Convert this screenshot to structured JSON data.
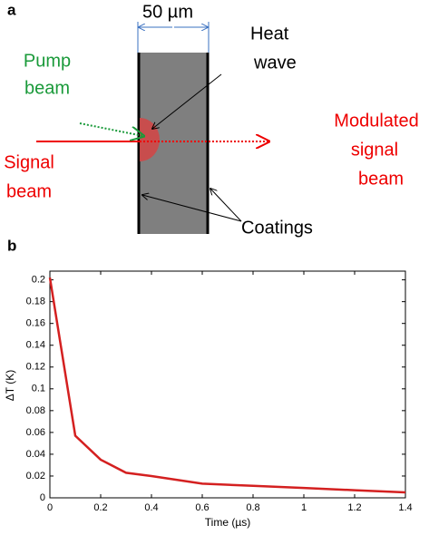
{
  "panel_a": {
    "label": "a",
    "width_label": "50 µm",
    "heat_wave": [
      "Heat",
      "wave"
    ],
    "pump_beam": [
      "Pump",
      "beam"
    ],
    "signal_beam": [
      "Signal",
      "beam"
    ],
    "modulated_beam": [
      "Modulated",
      "signal",
      "beam"
    ],
    "coatings": "Coatings"
  },
  "panel_b": {
    "label": "b"
  },
  "chart_data": {
    "type": "line",
    "x_label": "Time (µs)",
    "y_label": "ΔT (K)",
    "x": [
      0,
      0.1,
      0.2,
      0.3,
      0.4,
      0.6,
      0.8,
      1,
      1.2,
      1.4
    ],
    "values": [
      0.202,
      0.057,
      0.035,
      0.023,
      0.02,
      0.013,
      0.011,
      0.009,
      0.007,
      0.005
    ],
    "color": "#d42020",
    "xlim": [
      0,
      1.4
    ],
    "xticks": [
      0,
      0.2,
      0.4,
      0.6,
      0.8,
      1,
      1.2,
      1.4
    ],
    "ylim": [
      0,
      0.208
    ],
    "yticks": [
      0,
      0.02,
      0.04,
      0.06,
      0.08,
      0.1,
      0.12,
      0.14,
      0.16,
      0.18,
      0.2
    ]
  }
}
